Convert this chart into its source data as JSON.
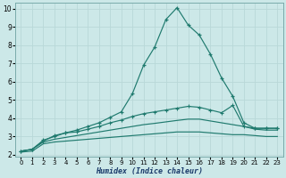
{
  "x": [
    0,
    1,
    2,
    3,
    4,
    5,
    6,
    7,
    8,
    9,
    10,
    11,
    12,
    13,
    14,
    15,
    16,
    17,
    18,
    19,
    20,
    21,
    22,
    23
  ],
  "line1": [
    2.2,
    2.3,
    2.8,
    3.0,
    3.2,
    3.35,
    3.55,
    3.75,
    4.05,
    4.35,
    5.35,
    6.9,
    7.9,
    9.4,
    10.05,
    9.1,
    8.55,
    7.5,
    6.2,
    5.2,
    3.75,
    3.45,
    3.45,
    3.45
  ],
  "line2": [
    2.2,
    2.3,
    2.75,
    3.05,
    3.2,
    3.25,
    3.4,
    3.55,
    3.75,
    3.9,
    4.1,
    4.25,
    4.35,
    4.45,
    4.55,
    4.65,
    4.6,
    4.45,
    4.3,
    4.7,
    3.55,
    3.45,
    3.45,
    3.45
  ],
  "line3": [
    2.2,
    2.3,
    2.7,
    2.85,
    2.95,
    3.05,
    3.15,
    3.25,
    3.35,
    3.45,
    3.55,
    3.65,
    3.72,
    3.8,
    3.88,
    3.95,
    3.95,
    3.85,
    3.75,
    3.65,
    3.55,
    3.4,
    3.35,
    3.35
  ],
  "line4": [
    2.15,
    2.2,
    2.6,
    2.7,
    2.75,
    2.8,
    2.85,
    2.9,
    2.95,
    3.0,
    3.05,
    3.1,
    3.15,
    3.2,
    3.25,
    3.25,
    3.25,
    3.2,
    3.15,
    3.1,
    3.1,
    3.05,
    3.0,
    3.0
  ],
  "line_color": "#1f7a6e",
  "bg_color": "#cce8e8",
  "grid_major_color": "#b8d8d8",
  "grid_minor_color": "#d0e8e8",
  "xlabel": "Humidex (Indice chaleur)",
  "ylim": [
    1.9,
    10.3
  ],
  "xlim": [
    -0.5,
    23.5
  ],
  "yticks": [
    2,
    3,
    4,
    5,
    6,
    7,
    8,
    9,
    10
  ],
  "xticks": [
    0,
    1,
    2,
    3,
    4,
    5,
    6,
    7,
    8,
    9,
    10,
    11,
    12,
    13,
    14,
    15,
    16,
    17,
    18,
    19,
    20,
    21,
    22,
    23
  ]
}
